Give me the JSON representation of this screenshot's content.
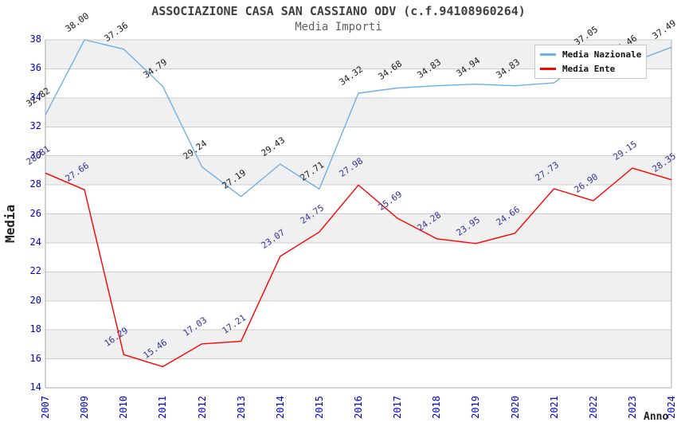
{
  "chart_data": {
    "type": "line",
    "title": "ASSOCIAZIONE CASA SAN CASSIANO ODV (c.f.94108960264)",
    "subtitle": "Media Importi",
    "xlabel": "Anno",
    "ylabel": "Media",
    "x": [
      "2007",
      "2009",
      "2010",
      "2011",
      "2012",
      "2013",
      "2014",
      "2015",
      "2016",
      "2017",
      "2018",
      "2019",
      "2020",
      "2021",
      "2022",
      "2023",
      "2024"
    ],
    "series": [
      {
        "name": "Media Nazionale",
        "color": "#6fb0e4",
        "label_color": "#1a1a1a",
        "values": [
          32.82,
          38.0,
          37.36,
          34.79,
          29.24,
          27.19,
          29.43,
          27.71,
          34.32,
          34.68,
          34.83,
          34.94,
          34.83,
          35.03,
          37.05,
          36.46,
          37.49
        ]
      },
      {
        "name": "Media Ente",
        "color": "#ff0000",
        "label_color": "#333399",
        "values": [
          28.81,
          27.66,
          16.29,
          15.46,
          17.03,
          17.21,
          23.07,
          24.75,
          27.98,
          25.69,
          24.28,
          23.95,
          24.66,
          27.73,
          26.9,
          29.15,
          28.35
        ]
      }
    ],
    "ylim": [
      14,
      38
    ],
    "ytick_step": 2,
    "grid": "horizontal",
    "alternating_bands": true,
    "legend_position": "top-right"
  },
  "style": {
    "background": "#ffffff",
    "band_fill": "#f0f0f0",
    "grid_color": "#cccccc",
    "axis_color": "#aaaaaa",
    "tick_label_color": "#0000cc",
    "title_color": "#404040",
    "subtitle_color": "#606060",
    "axis_title_color": "#222222",
    "legend_border_color": "#c8c8c8"
  }
}
